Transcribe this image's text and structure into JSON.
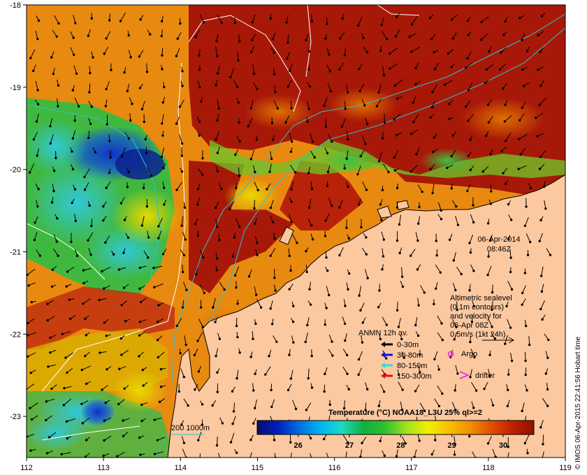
{
  "chart_data": {
    "type": "heatmap",
    "x_ticks": [
      "112",
      "113",
      "114",
      "115",
      "116",
      "117",
      "118",
      "119"
    ],
    "y_ticks": [
      "-18",
      "-19",
      "-20",
      "-21",
      "-22",
      "-23"
    ],
    "xlim": [
      112,
      119
    ],
    "ylim": [
      -23.5,
      -18
    ],
    "date_label": "06-Apr-2014",
    "time_label": "08:46Z",
    "altimetry_note": [
      "Altimetric sealevel",
      "(0.1m contours)",
      "and velocity for",
      "06-Apr 08Z",
      "0.5m/s (1kt 24h)"
    ],
    "anmn_title": "ANMN 12h av.",
    "anmn_legend": [
      {
        "label": "0-30m",
        "color": "#000000"
      },
      {
        "label": "30-80m",
        "color": "#1010e0"
      },
      {
        "label": "80-150m",
        "color": "#20e0e0"
      },
      {
        "label": "150-300m",
        "color": "#e01010"
      }
    ],
    "argo_label": "Argo",
    "drifter_label": "drifter",
    "bathy_label": "200  1000m",
    "colorbar": {
      "title": "Temperature (°C) NOAA18_L3U 25% ql>=2",
      "ticks": [
        "26",
        "27",
        "28",
        "29",
        "30"
      ],
      "range": [
        25.2,
        30.6
      ],
      "colors": [
        "#0a0a70",
        "#0020c0",
        "#0070e0",
        "#00b8f0",
        "#20d8c0",
        "#10b040",
        "#30c030",
        "#a0e020",
        "#f0f000",
        "#f8c000",
        "#f09000",
        "#e05000",
        "#c02000",
        "#901000"
      ]
    },
    "credit": "© IMOS 06-Apr-2015 22:41:56 Hobart time"
  }
}
